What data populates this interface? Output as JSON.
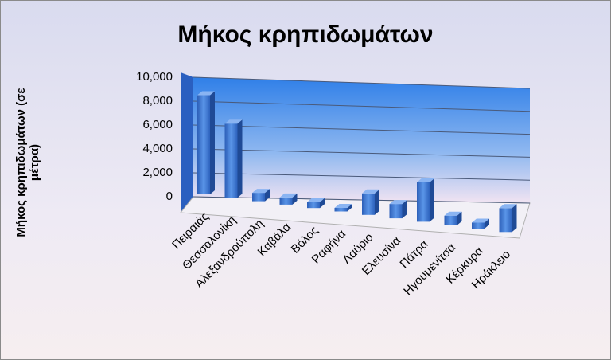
{
  "chart_data": {
    "type": "bar3d",
    "title": "Μήκος κρηπιδωμάτων",
    "y_label": "Μήκος κρηπιδωμάτων (σε μέτρα)",
    "categories": [
      "Πειραιάς",
      "Θεσσαλονίκη",
      "Αλεξανδρούπολη",
      "Καβάλα",
      "Βόλος",
      "Ραφήνα",
      "Λαύριο",
      "Ελευσίνα",
      "Πάτρα",
      "Ηγουμενίτσα",
      "Κέρκυρα",
      "Ηράκλειο"
    ],
    "values": [
      8300,
      6200,
      700,
      600,
      500,
      300,
      1800,
      1200,
      3300,
      800,
      500,
      2000
    ],
    "color": "#3a73d0",
    "ylim": [
      0,
      10000
    ],
    "yticks": [
      0,
      {
        "value": 2000,
        "label": "2,000"
      },
      {
        "value": 4000,
        "label": "4,000"
      },
      {
        "value": 6000,
        "label": "6,000"
      },
      {
        "value": 8000,
        "label": "8,000"
      },
      {
        "value": 10000,
        "label": "10,000"
      }
    ],
    "grid": true
  }
}
